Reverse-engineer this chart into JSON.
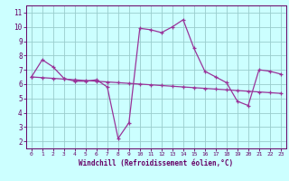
{
  "xlabel": "Windchill (Refroidissement éolien,°C)",
  "line1_x": [
    0,
    1,
    2,
    3,
    4,
    5,
    6,
    7,
    8,
    9,
    10,
    11,
    12,
    13,
    14,
    15,
    16,
    17,
    18,
    19,
    20,
    21,
    22,
    23
  ],
  "line1_y": [
    6.5,
    7.7,
    7.2,
    6.4,
    6.2,
    6.2,
    6.3,
    5.8,
    2.2,
    3.3,
    9.9,
    9.8,
    9.6,
    10.0,
    10.5,
    8.5,
    6.9,
    6.5,
    6.1,
    4.8,
    4.5,
    7.0,
    6.9,
    6.7
  ],
  "line2_x": [
    0,
    1,
    2,
    3,
    4,
    5,
    6,
    7,
    8,
    9,
    10,
    11,
    12,
    13,
    14,
    15,
    16,
    17,
    18,
    19,
    20,
    21,
    22,
    23
  ],
  "line2_y": [
    6.5,
    6.45,
    6.4,
    6.35,
    6.3,
    6.25,
    6.2,
    6.15,
    6.1,
    6.05,
    6.0,
    5.95,
    5.9,
    5.85,
    5.8,
    5.75,
    5.7,
    5.65,
    5.6,
    5.55,
    5.5,
    5.45,
    5.4,
    5.35
  ],
  "line_color": "#993399",
  "bg_color": "#ccffff",
  "grid_color": "#99cccc",
  "axis_label_color": "#660066",
  "tick_color": "#660066",
  "spine_color": "#660066",
  "ylim": [
    1.5,
    11.5
  ],
  "xlim": [
    -0.5,
    23.5
  ],
  "yticks": [
    2,
    3,
    4,
    5,
    6,
    7,
    8,
    9,
    10,
    11
  ],
  "xticks": [
    0,
    1,
    2,
    3,
    4,
    5,
    6,
    7,
    8,
    9,
    10,
    11,
    12,
    13,
    14,
    15,
    16,
    17,
    18,
    19,
    20,
    21,
    22,
    23
  ],
  "xtick_labels": [
    "0",
    "1",
    "2",
    "3",
    "4",
    "5",
    "6",
    "7",
    "8",
    "9",
    "10",
    "11",
    "12",
    "13",
    "14",
    "15",
    "16",
    "17",
    "18",
    "19",
    "20",
    "21",
    "22",
    "23"
  ]
}
